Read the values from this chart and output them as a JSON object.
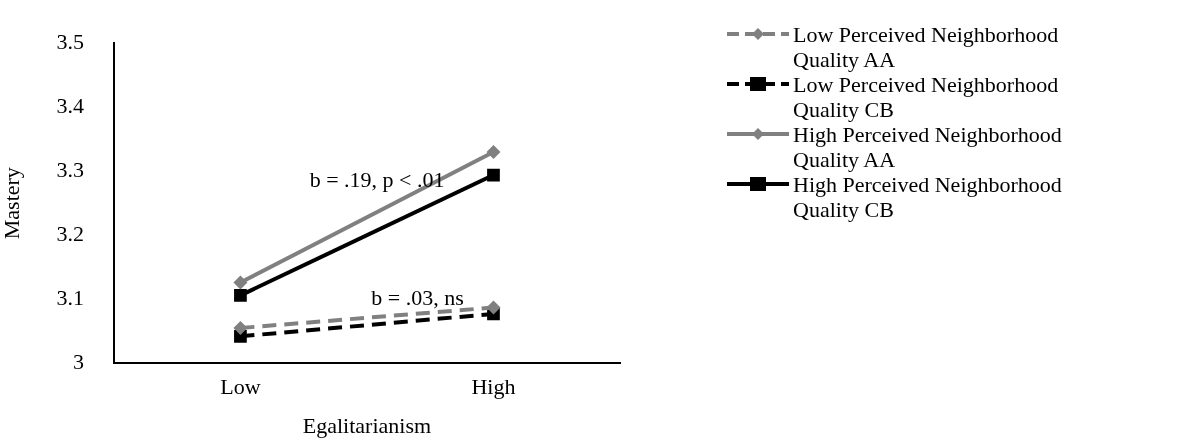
{
  "chart_data": {
    "type": "line",
    "xlabel": "Egalitarianism",
    "ylabel": "Mastery",
    "categories": [
      "Low",
      "High"
    ],
    "series": [
      {
        "name": "Low Perceived Neighborhood Quality AA",
        "color": "#808080",
        "values": [
          3.055,
          3.087
        ],
        "marker": "diamond",
        "line_style": "dashed"
      },
      {
        "name": "Low Perceived Neighborhood Quality CB",
        "color": "#000000",
        "values": [
          3.042,
          3.077
        ],
        "marker": "square",
        "line_style": "dashed"
      },
      {
        "name": "High Perceived Neighborhood Quality AA",
        "color": "#808080",
        "values": [
          3.126,
          3.33
        ],
        "marker": "diamond",
        "line_style": "solid"
      },
      {
        "name": "High Perceived Neighborhood Quality CB",
        "color": "#000000",
        "values": [
          3.106,
          3.294
        ],
        "marker": "square",
        "line_style": "solid"
      }
    ],
    "ylim": [
      3,
      3.5
    ],
    "yticks": [
      3,
      3.1,
      3.2,
      3.3,
      3.4,
      3.5
    ],
    "annotations": [
      "b = .19, p < .01",
      "b = .03, ns"
    ],
    "grid": false,
    "legend": "right"
  }
}
